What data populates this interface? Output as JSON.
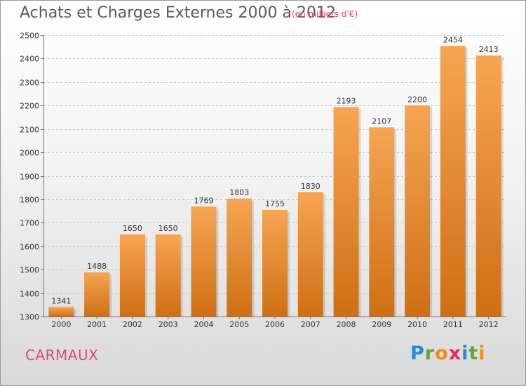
{
  "chart_data": {
    "type": "bar",
    "title": "Achats et Charges Externes 2000 à 2012",
    "subtitle": "(en milliers d'€)",
    "categories": [
      "2000",
      "2001",
      "2002",
      "2003",
      "2004",
      "2005",
      "2006",
      "2007",
      "2008",
      "2009",
      "2010",
      "2011",
      "2012"
    ],
    "values": [
      1341,
      1488,
      1650,
      1650,
      1769,
      1803,
      1755,
      1830,
      2193,
      2107,
      2200,
      2454,
      2413
    ],
    "ylim": [
      1300,
      2500
    ],
    "yticks": [
      1300,
      1400,
      1500,
      1600,
      1700,
      1800,
      1900,
      2000,
      2100,
      2200,
      2300,
      2400,
      2500
    ],
    "grid": true,
    "bar_color_top": "#f6a552",
    "bar_color_bottom": "#cf6f14"
  },
  "footer": {
    "city": "CARMAUX",
    "logo": {
      "letters": [
        "P",
        "r",
        "o",
        "x",
        "i",
        "t",
        "i"
      ],
      "colors": [
        "#2a8ad6",
        "#5aa83a",
        "#f08a1c",
        "#e0306a",
        "#2a8ad6",
        "#5aa83a",
        "#f08a1c"
      ]
    }
  }
}
